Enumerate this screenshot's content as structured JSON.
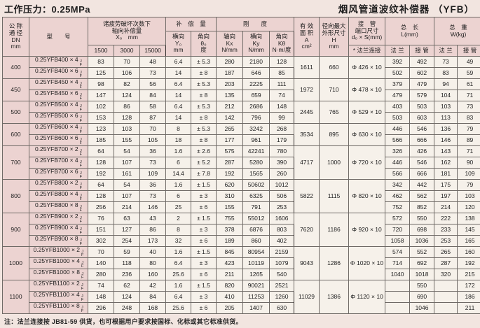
{
  "page": {
    "pressure_label": "工作压力：0.25MPa",
    "title": "烟风管道波纹补偿器 （YFB）",
    "footnote": "注：法兰连接按 JB81-59 供货，也可根据用户要求按国标、化标或其它标准供货。"
  },
  "table": {
    "model_suffix_top": "J",
    "model_suffix_bottom": "F",
    "headers": {
      "dn": "公 称\n通 径\nDN\nmm",
      "model": "型　　号",
      "fatigue": "诸疲劳破坏次数下\n轴向补偿量\nX₀　mm",
      "cycles": [
        "1500",
        "3000",
        "15000"
      ],
      "compensation": "补　偿　量",
      "lateral": "横向\nY₀\nmm",
      "angular": "角向\nθ₀\n度",
      "stiffness": "刚　　度",
      "axial_stiffness": "轴向\nKx\nN/mm",
      "lateral_stiffness": "横向\nKy\nN/mm",
      "angular_stiffness": "角向\nKθ\nN·m/度",
      "area": "有 效\n面 积\nA\ncm²",
      "radial": "径向最大\n外形尺寸\nH\nmm",
      "socket": "接　管\n端口尺寸\nd₀ × S(mm)",
      "socket_sub": "* 法兰连接",
      "length": "总　长\nL(mm)",
      "weight": "总　重\nW(kg)",
      "flange": "法 兰",
      "pipe": "接 管"
    },
    "groups": [
      {
        "dn": "400",
        "a": "1611",
        "h": "660",
        "d": "Φ 426 × 10",
        "rows": [
          {
            "model": "0.25YFB400 × 4",
            "x1500": "83",
            "x3000": "70",
            "x15000": "48",
            "y": "6.4",
            "theta": "± 5.3",
            "kx": "280",
            "ky": "2180",
            "kt": "128",
            "lf": "392",
            "lp": "492",
            "wf": "73",
            "wp": "49"
          },
          {
            "model": "0.25YFB400 × 6",
            "x1500": "125",
            "x3000": "106",
            "x15000": "73",
            "y": "14",
            "theta": "± 8",
            "kx": "187",
            "ky": "646",
            "kt": "85",
            "lf": "502",
            "lp": "602",
            "wf": "83",
            "wp": "59"
          }
        ]
      },
      {
        "dn": "450",
        "a": "1972",
        "h": "710",
        "d": "Φ 478 × 10",
        "rows": [
          {
            "model": "0.25YFB450 × 4",
            "x1500": "98",
            "x3000": "82",
            "x15000": "56",
            "y": "6.4",
            "theta": "± 5.3",
            "kx": "203",
            "ky": "2225",
            "kt": "111",
            "lf": "379",
            "lp": "479",
            "wf": "94",
            "wp": "61"
          },
          {
            "model": "0.25YFB450 × 6",
            "x1500": "147",
            "x3000": "124",
            "x15000": "84",
            "y": "14",
            "theta": "± 8",
            "kx": "135",
            "ky": "659",
            "kt": "74",
            "lf": "479",
            "lp": "579",
            "wf": "104",
            "wp": "71"
          }
        ]
      },
      {
        "dn": "500",
        "a": "2445",
        "h": "765",
        "d": "Φ 529 × 10",
        "rows": [
          {
            "model": "0.25YFB500 × 4",
            "x1500": "102",
            "x3000": "86",
            "x15000": "58",
            "y": "6.4",
            "theta": "± 5.3",
            "kx": "212",
            "ky": "2686",
            "kt": "148",
            "lf": "403",
            "lp": "503",
            "wf": "103",
            "wp": "73"
          },
          {
            "model": "0.25YFB500 × 6",
            "x1500": "153",
            "x3000": "128",
            "x15000": "87",
            "y": "14",
            "theta": "± 8",
            "kx": "142",
            "ky": "796",
            "kt": "99",
            "lf": "503",
            "lp": "603",
            "wf": "113",
            "wp": "83"
          }
        ]
      },
      {
        "dn": "600",
        "a": "3534",
        "h": "895",
        "d": "Φ 630 × 10",
        "rows": [
          {
            "model": "0.25YFB600 × 4",
            "x1500": "123",
            "x3000": "103",
            "x15000": "70",
            "y": "8",
            "theta": "± 5.3",
            "kx": "265",
            "ky": "3242",
            "kt": "268",
            "lf": "446",
            "lp": "546",
            "wf": "136",
            "wp": "79"
          },
          {
            "model": "0.25YFB600 × 6",
            "x1500": "185",
            "x3000": "155",
            "x15000": "105",
            "y": "18",
            "theta": "± 8",
            "kx": "177",
            "ky": "961",
            "kt": "179",
            "lf": "566",
            "lp": "666",
            "wf": "146",
            "wp": "89"
          }
        ]
      },
      {
        "dn": "700",
        "a": "4717",
        "h": "1000",
        "d": "Φ 720 × 10",
        "rows": [
          {
            "model": "0.25YFB700 × 2",
            "x1500": "64",
            "x3000": "54",
            "x15000": "36",
            "y": "1.6",
            "theta": "± 2.6",
            "kx": "575",
            "ky": "42241",
            "kt": "780",
            "lf": "326",
            "lp": "426",
            "wf": "143",
            "wp": "71"
          },
          {
            "model": "0.25YFB700 × 4",
            "x1500": "128",
            "x3000": "107",
            "x15000": "73",
            "y": "6",
            "theta": "± 5.2",
            "kx": "287",
            "ky": "5280",
            "kt": "390",
            "lf": "446",
            "lp": "546",
            "wf": "162",
            "wp": "90"
          },
          {
            "model": "0.25YFB700 × 6",
            "x1500": "192",
            "x3000": "161",
            "x15000": "109",
            "y": "14.4",
            "theta": "± 7.8",
            "kx": "192",
            "ky": "1565",
            "kt": "260",
            "lf": "566",
            "lp": "666",
            "wf": "181",
            "wp": "109"
          }
        ]
      },
      {
        "dn": "800",
        "a": "5822",
        "h": "1115",
        "d": "Φ 820 × 10",
        "rows": [
          {
            "model": "0.25YFB800 × 2",
            "x1500": "64",
            "x3000": "54",
            "x15000": "36",
            "y": "1.6",
            "theta": "± 1.5",
            "kx": "620",
            "ky": "50602",
            "kt": "1012",
            "lf": "342",
            "lp": "442",
            "wf": "175",
            "wp": "79"
          },
          {
            "model": "0.25YFB800 × 4",
            "x1500": "128",
            "x3000": "107",
            "x15000": "73",
            "y": "6",
            "theta": "± 3",
            "kx": "310",
            "ky": "6325",
            "kt": "506",
            "lf": "462",
            "lp": "562",
            "wf": "197",
            "wp": "103"
          },
          {
            "model": "0.25YFB800 × 8",
            "x1500": "256",
            "x3000": "214",
            "x15000": "146",
            "y": "25",
            "theta": "± 6",
            "kx": "155",
            "ky": "791",
            "kt": "253",
            "lf": "752",
            "lp": "852",
            "wf": "214",
            "wp": "120"
          }
        ]
      },
      {
        "dn": "900",
        "a": "7620",
        "h": "1186",
        "d": "Φ 920 × 10",
        "rows": [
          {
            "model": "0.25YFB900 × 2",
            "x1500": "76",
            "x3000": "63",
            "x15000": "43",
            "y": "2",
            "theta": "± 1.5",
            "kx": "755",
            "ky": "55012",
            "kt": "1606",
            "lf": "572",
            "lp": "550",
            "wf": "222",
            "wp": "138"
          },
          {
            "model": "0.25YFB900 × 4",
            "x1500": "151",
            "x3000": "127",
            "x15000": "86",
            "y": "8",
            "theta": "± 3",
            "kx": "378",
            "ky": "6876",
            "kt": "803",
            "lf": "720",
            "lp": "698",
            "wf": "233",
            "wp": "145"
          },
          {
            "model": "0.25YFB900 × 8",
            "x1500": "302",
            "x3000": "254",
            "x15000": "173",
            "y": "32",
            "theta": "± 6",
            "kx": "189",
            "ky": "860",
            "kt": "402",
            "lf": "1058",
            "lp": "1036",
            "wf": "253",
            "wp": "165"
          }
        ]
      },
      {
        "dn": "1000",
        "a": "9043",
        "h": "1286",
        "d": "Φ 1020 × 10",
        "rows": [
          {
            "model": "0.25YFB1000 × 2",
            "x1500": "70",
            "x3000": "59",
            "x15000": "40",
            "y": "1.6",
            "theta": "± 1.5",
            "kx": "845",
            "ky": "80954",
            "kt": "2159",
            "lf": "574",
            "lp": "552",
            "wf": "265",
            "wp": "160"
          },
          {
            "model": "0.25YFB1000 × 4",
            "x1500": "140",
            "x3000": "118",
            "x15000": "80",
            "y": "6.4",
            "theta": "± 3",
            "kx": "423",
            "ky": "10119",
            "kt": "1079",
            "lf": "714",
            "lp": "692",
            "wf": "287",
            "wp": "192"
          },
          {
            "model": "0.25YFB1000 × 8",
            "x1500": "280",
            "x3000": "236",
            "x15000": "160",
            "y": "25.6",
            "theta": "± 6",
            "kx": "211",
            "ky": "1265",
            "kt": "540",
            "lf": "1040",
            "lp": "1018",
            "wf": "320",
            "wp": "215"
          }
        ]
      },
      {
        "dn": "1100",
        "a": "11029",
        "h": "1386",
        "d": "Φ 1120 × 10",
        "rows": [
          {
            "model": "0.25YFB1100 × 2",
            "x1500": "74",
            "x3000": "62",
            "x15000": "42",
            "y": "1.6",
            "theta": "± 1.5",
            "kx": "820",
            "ky": "90021",
            "kt": "2521",
            "lf": "",
            "lp": "550",
            "wf": "",
            "wp": "172"
          },
          {
            "model": "0.25YFB1100 × 4",
            "x1500": "148",
            "x3000": "124",
            "x15000": "84",
            "y": "6.4",
            "theta": "± 3",
            "kx": "410",
            "ky": "11253",
            "kt": "1260",
            "lf": "",
            "lp": "690",
            "wf": "",
            "wp": "186"
          },
          {
            "model": "0.25YFB1100 × 8",
            "x1500": "296",
            "x3000": "248",
            "x15000": "168",
            "y": "25.6",
            "theta": "± 6",
            "kx": "205",
            "ky": "1407",
            "kt": "630",
            "lf": "",
            "lp": "1046",
            "wf": "",
            "wp": "211"
          }
        ]
      }
    ]
  }
}
